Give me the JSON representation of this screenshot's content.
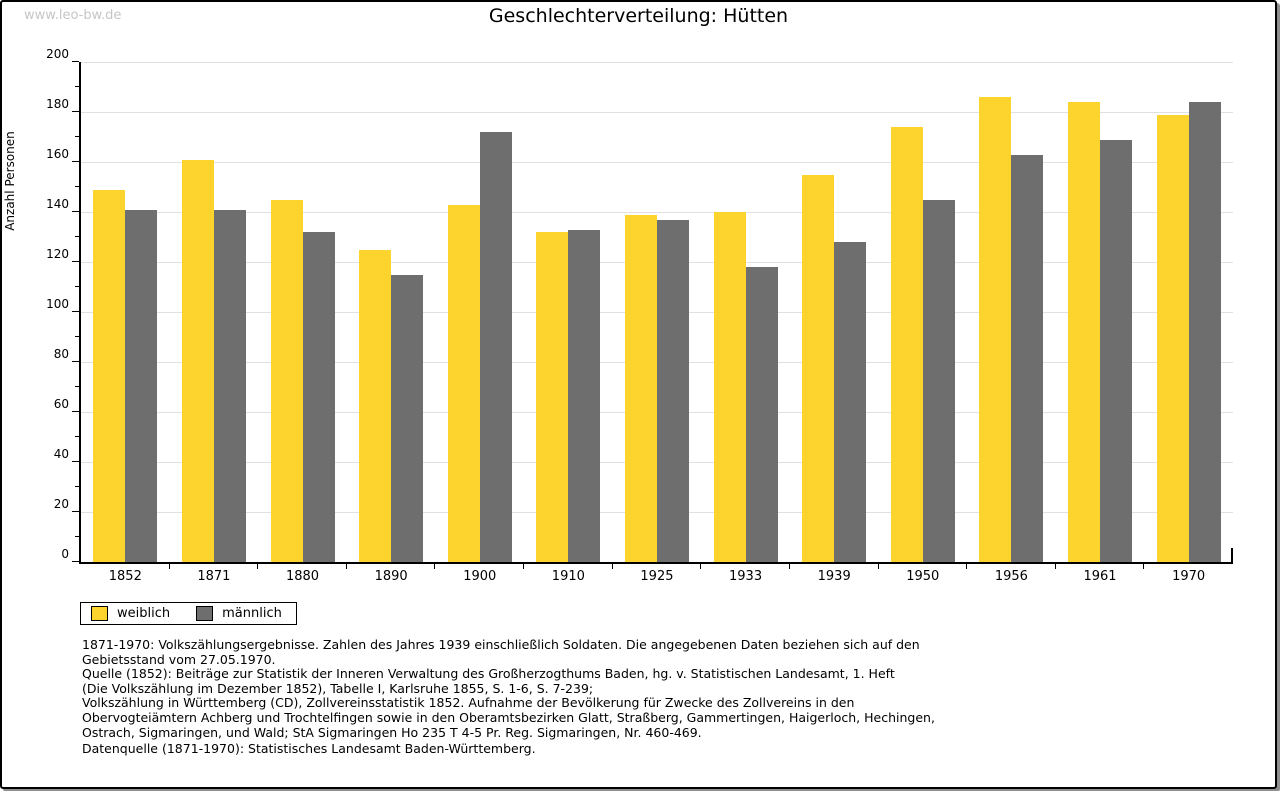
{
  "watermark": "www.leo-bw.de",
  "title": "Geschlechterverteilung: Hütten",
  "ylabel": "Anzahl Personen",
  "colors": {
    "weiblich": "#FCD42D",
    "maennlich": "#6E6E6E",
    "gridline": "#E0E0E0",
    "axis": "#000000",
    "watermark": "#C6C6C6"
  },
  "chart_data": {
    "type": "bar",
    "title": "Geschlechterverteilung: Hütten",
    "xlabel": "",
    "ylabel": "Anzahl Personen",
    "categories": [
      "1852",
      "1871",
      "1880",
      "1890",
      "1900",
      "1910",
      "1925",
      "1933",
      "1939",
      "1950",
      "1956",
      "1961",
      "1970"
    ],
    "series": [
      {
        "name": "weiblich",
        "color": "#FCD42D",
        "values": [
          149,
          161,
          145,
          125,
          143,
          132,
          139,
          140,
          155,
          174,
          186,
          184,
          179
        ]
      },
      {
        "name": "männlich",
        "color": "#6E6E6E",
        "values": [
          141,
          141,
          132,
          115,
          172,
          133,
          137,
          118,
          128,
          145,
          163,
          169,
          184
        ]
      }
    ],
    "ylim": [
      0,
      200
    ],
    "ytick_major_step": 20,
    "ytick_minor_step": 10,
    "grid": true,
    "legend_position": "bottom-left"
  },
  "footnotes": [
    "1871-1970: Volkszählungsergebnisse. Zahlen des Jahres 1939 einschließlich Soldaten. Die angegebenen Daten beziehen sich auf den",
    "Gebietsstand vom 27.05.1970.",
    "Quelle (1852): Beiträge zur Statistik der Inneren Verwaltung des Großherzogthums Baden, hg. v. Statistischen Landesamt, 1. Heft",
    "(Die Volkszählung im Dezember 1852), Tabelle I, Karlsruhe 1855, S. 1-6, S. 7-239;",
    "Volkszählung in Württemberg (CD), Zollvereinsstatistik 1852. Aufnahme der Bevölkerung für Zwecke des Zollvereins in den",
    "Obervogteiämtern Achberg und Trochtelfingen sowie in den Oberamtsbezirken Glatt, Straßberg, Gammertingen, Haigerloch, Hechingen,",
    "Ostrach, Sigmaringen, und Wald; StA Sigmaringen Ho 235 T 4-5 Pr. Reg. Sigmaringen, Nr. 460-469."
  ],
  "datasource": "Datenquelle (1871-1970): Statistisches Landesamt Baden-Württemberg."
}
